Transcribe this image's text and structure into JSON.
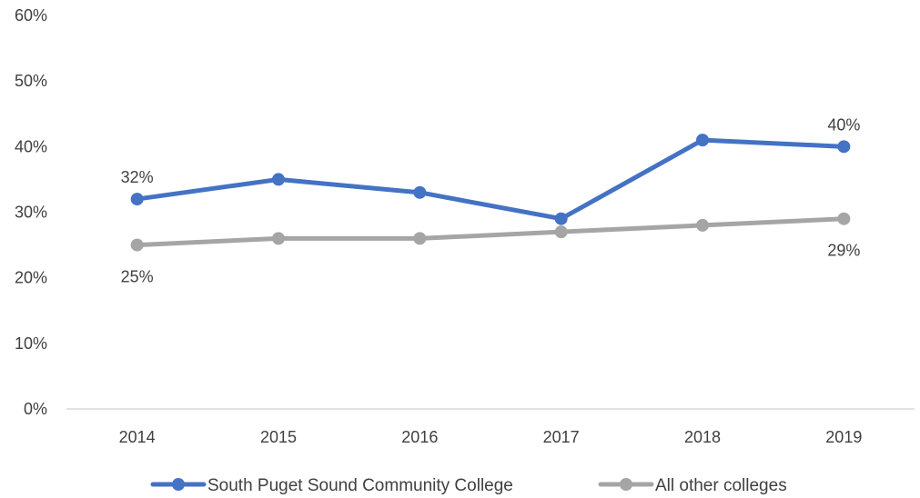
{
  "chart_data": {
    "type": "line",
    "title": "",
    "xlabel": "",
    "ylabel": "",
    "x": [
      "2014",
      "2015",
      "2016",
      "2017",
      "2018",
      "2019"
    ],
    "ylim": [
      0,
      60
    ],
    "yticks": [
      0,
      10,
      20,
      30,
      40,
      50,
      60
    ],
    "ytick_labels": [
      "0%",
      "10%",
      "20%",
      "30%",
      "40%",
      "50%",
      "60%"
    ],
    "grid": false,
    "legend_position": "bottom",
    "series": [
      {
        "name": "South Puget Sound Community College",
        "color": "#4472C4",
        "values": [
          32,
          35,
          33,
          29,
          41,
          40
        ],
        "labels": [
          {
            "index": 0,
            "text": "32%",
            "position": "above"
          },
          {
            "index": 5,
            "text": "40%",
            "position": "above"
          }
        ]
      },
      {
        "name": "All other colleges",
        "color": "#A5A5A5",
        "values": [
          25,
          26,
          26,
          27,
          28,
          29
        ],
        "labels": [
          {
            "index": 0,
            "text": "25%",
            "position": "below"
          },
          {
            "index": 5,
            "text": "29%",
            "position": "below"
          }
        ]
      }
    ]
  },
  "axis_color": "#D9D9D9"
}
